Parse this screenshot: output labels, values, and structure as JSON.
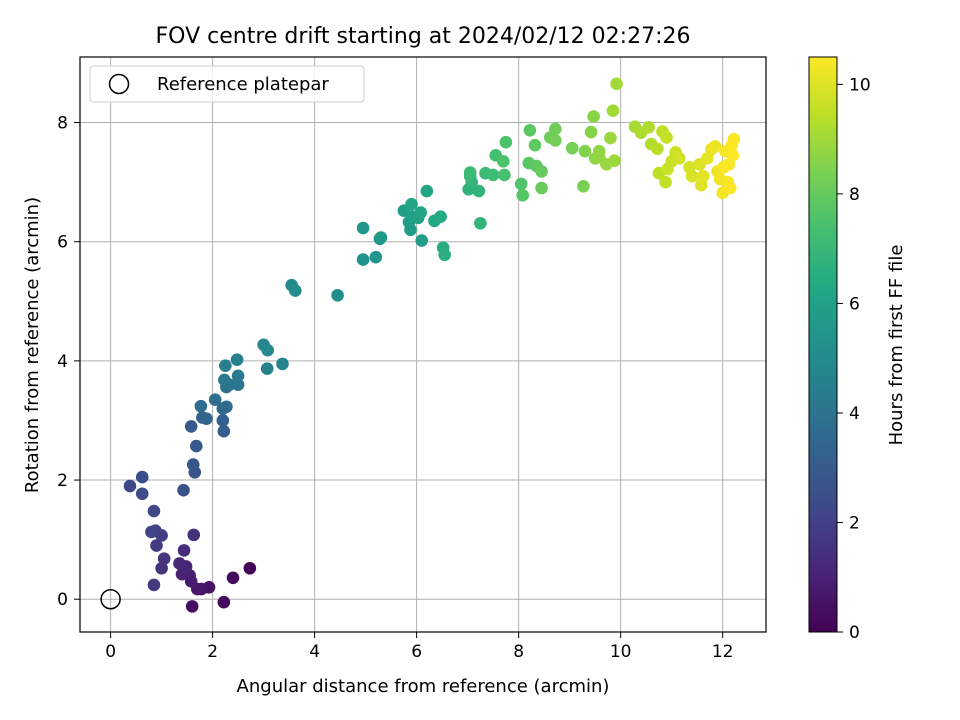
{
  "chart_data": {
    "type": "scatter",
    "title": "FOV centre drift starting at 2024/02/12 02:27:26",
    "xlabel": "Angular distance from reference (arcmin)",
    "ylabel": "Rotation from reference (arcmin)",
    "xlim": [
      -0.6,
      12.85
    ],
    "ylim": [
      -0.55,
      9.1
    ],
    "xticks": [
      0,
      2,
      4,
      6,
      8,
      10,
      12
    ],
    "yticks": [
      0,
      2,
      4,
      6,
      8
    ],
    "grid": true,
    "legend": {
      "position": "top-left",
      "entries": [
        "Reference platepar"
      ]
    },
    "reference_point": {
      "x": 0,
      "y": 0,
      "label": "Reference platepar"
    },
    "colorbar": {
      "label": "Hours from first FF file",
      "colormap": "viridis",
      "range": [
        0,
        10.5
      ],
      "ticks": [
        0,
        2,
        4,
        6,
        8,
        10
      ]
    },
    "series": [
      {
        "columns": [
          "x",
          "y",
          "hours"
        ],
        "points": [
          [
            2.73,
            0.52,
            0.1
          ],
          [
            2.4,
            0.36,
            0.2
          ],
          [
            2.22,
            -0.05,
            0.3
          ],
          [
            1.6,
            -0.12,
            0.4
          ],
          [
            1.93,
            0.2,
            0.5
          ],
          [
            1.78,
            0.17,
            0.6
          ],
          [
            1.7,
            0.17,
            0.7
          ],
          [
            1.58,
            0.3,
            0.8
          ],
          [
            1.55,
            0.4,
            0.9
          ],
          [
            1.4,
            0.42,
            1.0
          ],
          [
            1.48,
            0.55,
            1.1
          ],
          [
            1.35,
            0.6,
            1.2
          ],
          [
            1.44,
            0.82,
            1.3
          ],
          [
            1.63,
            1.08,
            1.4
          ],
          [
            1.0,
            0.52,
            1.5
          ],
          [
            1.05,
            0.68,
            1.6
          ],
          [
            0.85,
            0.24,
            1.7
          ],
          [
            0.9,
            0.9,
            1.8
          ],
          [
            1.0,
            1.07,
            1.9
          ],
          [
            0.88,
            1.15,
            2.0
          ],
          [
            0.8,
            1.13,
            2.1
          ],
          [
            0.85,
            1.48,
            2.2
          ],
          [
            0.38,
            1.9,
            2.3
          ],
          [
            0.62,
            1.77,
            2.4
          ],
          [
            0.62,
            2.05,
            2.5
          ],
          [
            1.43,
            1.83,
            2.6
          ],
          [
            1.65,
            2.13,
            2.7
          ],
          [
            1.62,
            2.26,
            2.8
          ],
          [
            1.68,
            2.57,
            2.9
          ],
          [
            1.58,
            2.9,
            3.0
          ],
          [
            2.22,
            2.82,
            3.1
          ],
          [
            2.2,
            3.0,
            3.2
          ],
          [
            1.8,
            3.05,
            3.3
          ],
          [
            1.88,
            3.03,
            3.4
          ],
          [
            2.2,
            3.2,
            3.5
          ],
          [
            2.27,
            3.23,
            3.6
          ],
          [
            1.77,
            3.24,
            3.7
          ],
          [
            2.05,
            3.35,
            3.8
          ],
          [
            2.27,
            3.56,
            3.9
          ],
          [
            2.33,
            3.6,
            4.0
          ],
          [
            2.5,
            3.6,
            4.1
          ],
          [
            2.23,
            3.68,
            4.2
          ],
          [
            2.5,
            3.75,
            4.3
          ],
          [
            2.25,
            3.92,
            4.4
          ],
          [
            2.48,
            4.02,
            4.5
          ],
          [
            3.07,
            3.87,
            4.6
          ],
          [
            3.37,
            3.95,
            4.7
          ],
          [
            3.0,
            4.27,
            4.8
          ],
          [
            3.08,
            4.18,
            4.9
          ],
          [
            3.55,
            5.27,
            5.0
          ],
          [
            3.62,
            5.18,
            5.1
          ],
          [
            4.45,
            5.1,
            5.2
          ],
          [
            4.95,
            5.7,
            5.3
          ],
          [
            5.2,
            5.74,
            5.4
          ],
          [
            4.95,
            6.23,
            5.5
          ],
          [
            5.28,
            6.05,
            5.55
          ],
          [
            5.3,
            6.07,
            5.6
          ],
          [
            5.85,
            6.33,
            5.7
          ],
          [
            5.88,
            6.2,
            5.75
          ],
          [
            6.1,
            6.02,
            5.8
          ],
          [
            5.75,
            6.52,
            5.85
          ],
          [
            5.92,
            6.42,
            5.9
          ],
          [
            6.03,
            6.4,
            6.0
          ],
          [
            6.08,
            6.49,
            6.1
          ],
          [
            5.9,
            6.63,
            6.2
          ],
          [
            6.2,
            6.85,
            6.25
          ],
          [
            6.35,
            6.35,
            6.3
          ],
          [
            6.47,
            6.42,
            6.4
          ],
          [
            6.52,
            5.9,
            6.5
          ],
          [
            6.55,
            5.78,
            6.6
          ],
          [
            7.02,
            6.88,
            6.7
          ],
          [
            7.22,
            6.85,
            6.8
          ],
          [
            7.25,
            6.31,
            6.85
          ],
          [
            7.08,
            7.0,
            6.9
          ],
          [
            7.05,
            7.1,
            7.0
          ],
          [
            7.05,
            7.16,
            7.05
          ],
          [
            7.35,
            7.15,
            7.1
          ],
          [
            7.5,
            7.12,
            7.2
          ],
          [
            7.55,
            7.45,
            7.3
          ],
          [
            7.72,
            7.12,
            7.4
          ],
          [
            7.7,
            7.35,
            7.5
          ],
          [
            7.75,
            7.67,
            7.55
          ],
          [
            8.05,
            6.97,
            7.6
          ],
          [
            8.08,
            6.78,
            7.7
          ],
          [
            8.2,
            7.32,
            7.75
          ],
          [
            8.22,
            7.87,
            7.8
          ],
          [
            8.35,
            7.27,
            7.85
          ],
          [
            8.32,
            7.62,
            7.9
          ],
          [
            8.45,
            7.18,
            8.0
          ],
          [
            8.45,
            6.9,
            8.05
          ],
          [
            8.62,
            7.75,
            8.1
          ],
          [
            8.72,
            7.89,
            8.2
          ],
          [
            8.72,
            7.7,
            8.25
          ],
          [
            9.05,
            7.57,
            8.3
          ],
          [
            9.27,
            6.93,
            8.4
          ],
          [
            9.3,
            7.52,
            8.5
          ],
          [
            9.42,
            7.84,
            8.55
          ],
          [
            9.47,
            8.1,
            8.6
          ],
          [
            9.5,
            7.4,
            8.7
          ],
          [
            9.58,
            7.52,
            8.75
          ],
          [
            9.58,
            7.42,
            8.8
          ],
          [
            9.72,
            7.3,
            8.85
          ],
          [
            9.8,
            7.74,
            8.9
          ],
          [
            9.88,
            7.36,
            8.95
          ],
          [
            9.85,
            8.2,
            9.0
          ],
          [
            9.92,
            8.65,
            9.05
          ],
          [
            10.28,
            7.93,
            9.1
          ],
          [
            10.4,
            7.83,
            9.2
          ],
          [
            10.55,
            7.92,
            9.25
          ],
          [
            10.6,
            7.64,
            9.3
          ],
          [
            10.72,
            7.56,
            9.4
          ],
          [
            10.75,
            7.15,
            9.45
          ],
          [
            10.82,
            7.85,
            9.5
          ],
          [
            10.88,
            7.0,
            9.55
          ],
          [
            10.9,
            7.75,
            9.6
          ],
          [
            10.92,
            7.22,
            9.65
          ],
          [
            11.0,
            7.35,
            9.7
          ],
          [
            11.08,
            7.5,
            9.75
          ],
          [
            11.15,
            7.4,
            9.8
          ],
          [
            11.35,
            7.25,
            9.85
          ],
          [
            11.4,
            7.1,
            9.9
          ],
          [
            11.55,
            7.3,
            9.95
          ],
          [
            11.58,
            6.95,
            10.0
          ],
          [
            11.62,
            7.1,
            10.05
          ],
          [
            11.7,
            7.4,
            10.1
          ],
          [
            11.78,
            7.55,
            10.15
          ],
          [
            11.85,
            7.6,
            10.2
          ],
          [
            11.9,
            7.18,
            10.25
          ],
          [
            11.95,
            7.05,
            10.3
          ],
          [
            12.0,
            6.82,
            10.35
          ],
          [
            12.02,
            7.25,
            10.38
          ],
          [
            12.05,
            7.52,
            10.4
          ],
          [
            12.1,
            7.0,
            10.42
          ],
          [
            12.12,
            7.3,
            10.44
          ],
          [
            12.15,
            6.9,
            10.46
          ],
          [
            12.18,
            7.62,
            10.47
          ],
          [
            12.2,
            7.45,
            10.48
          ],
          [
            12.22,
            7.72,
            10.5
          ]
        ]
      }
    ]
  }
}
